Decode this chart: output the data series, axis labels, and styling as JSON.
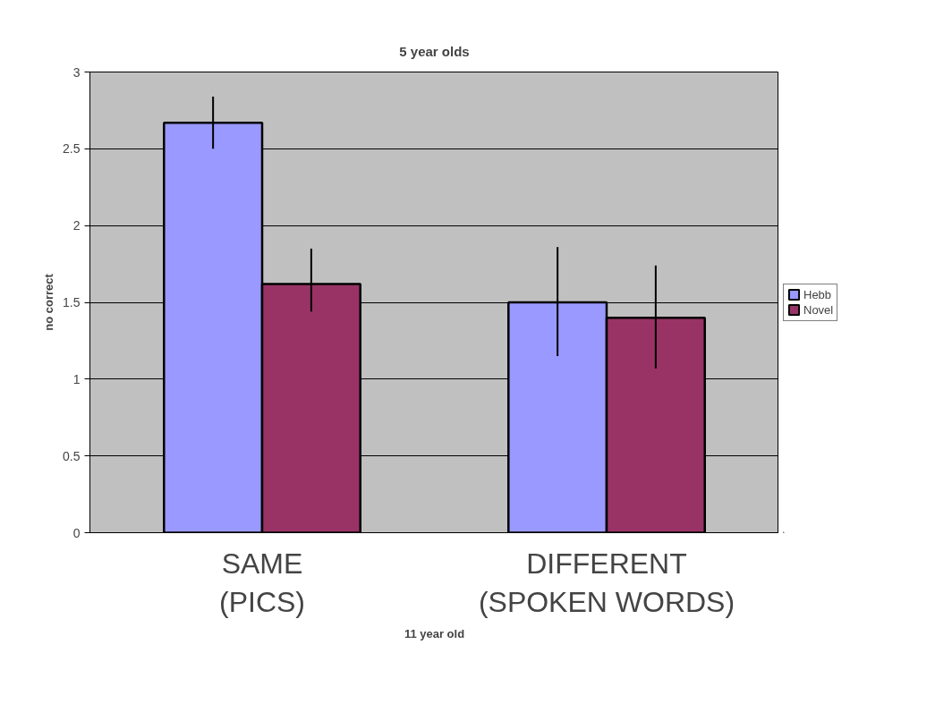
{
  "chart_data": {
    "type": "bar",
    "title": "5 year olds",
    "ylabel": "no correct",
    "categories": [
      "SAME\n(PICS)",
      "DIFFERENT\n(SPOKEN WORDS)"
    ],
    "series": [
      {
        "name": "Hebb",
        "color": "#9999ff",
        "values": [
          2.67,
          1.5
        ],
        "errors": [
          [
            2.5,
            2.84
          ],
          [
            1.15,
            1.86
          ]
        ]
      },
      {
        "name": "Novel",
        "color": "#993366",
        "values": [
          1.62,
          1.4
        ],
        "errors": [
          [
            1.44,
            1.85
          ],
          [
            1.07,
            1.74
          ]
        ]
      }
    ],
    "ylim": [
      0,
      3
    ],
    "yticks": [
      0,
      0.5,
      1,
      1.5,
      2,
      2.5,
      3
    ],
    "grid": "y",
    "legend": "right",
    "annotations": [
      "11 year old"
    ]
  }
}
